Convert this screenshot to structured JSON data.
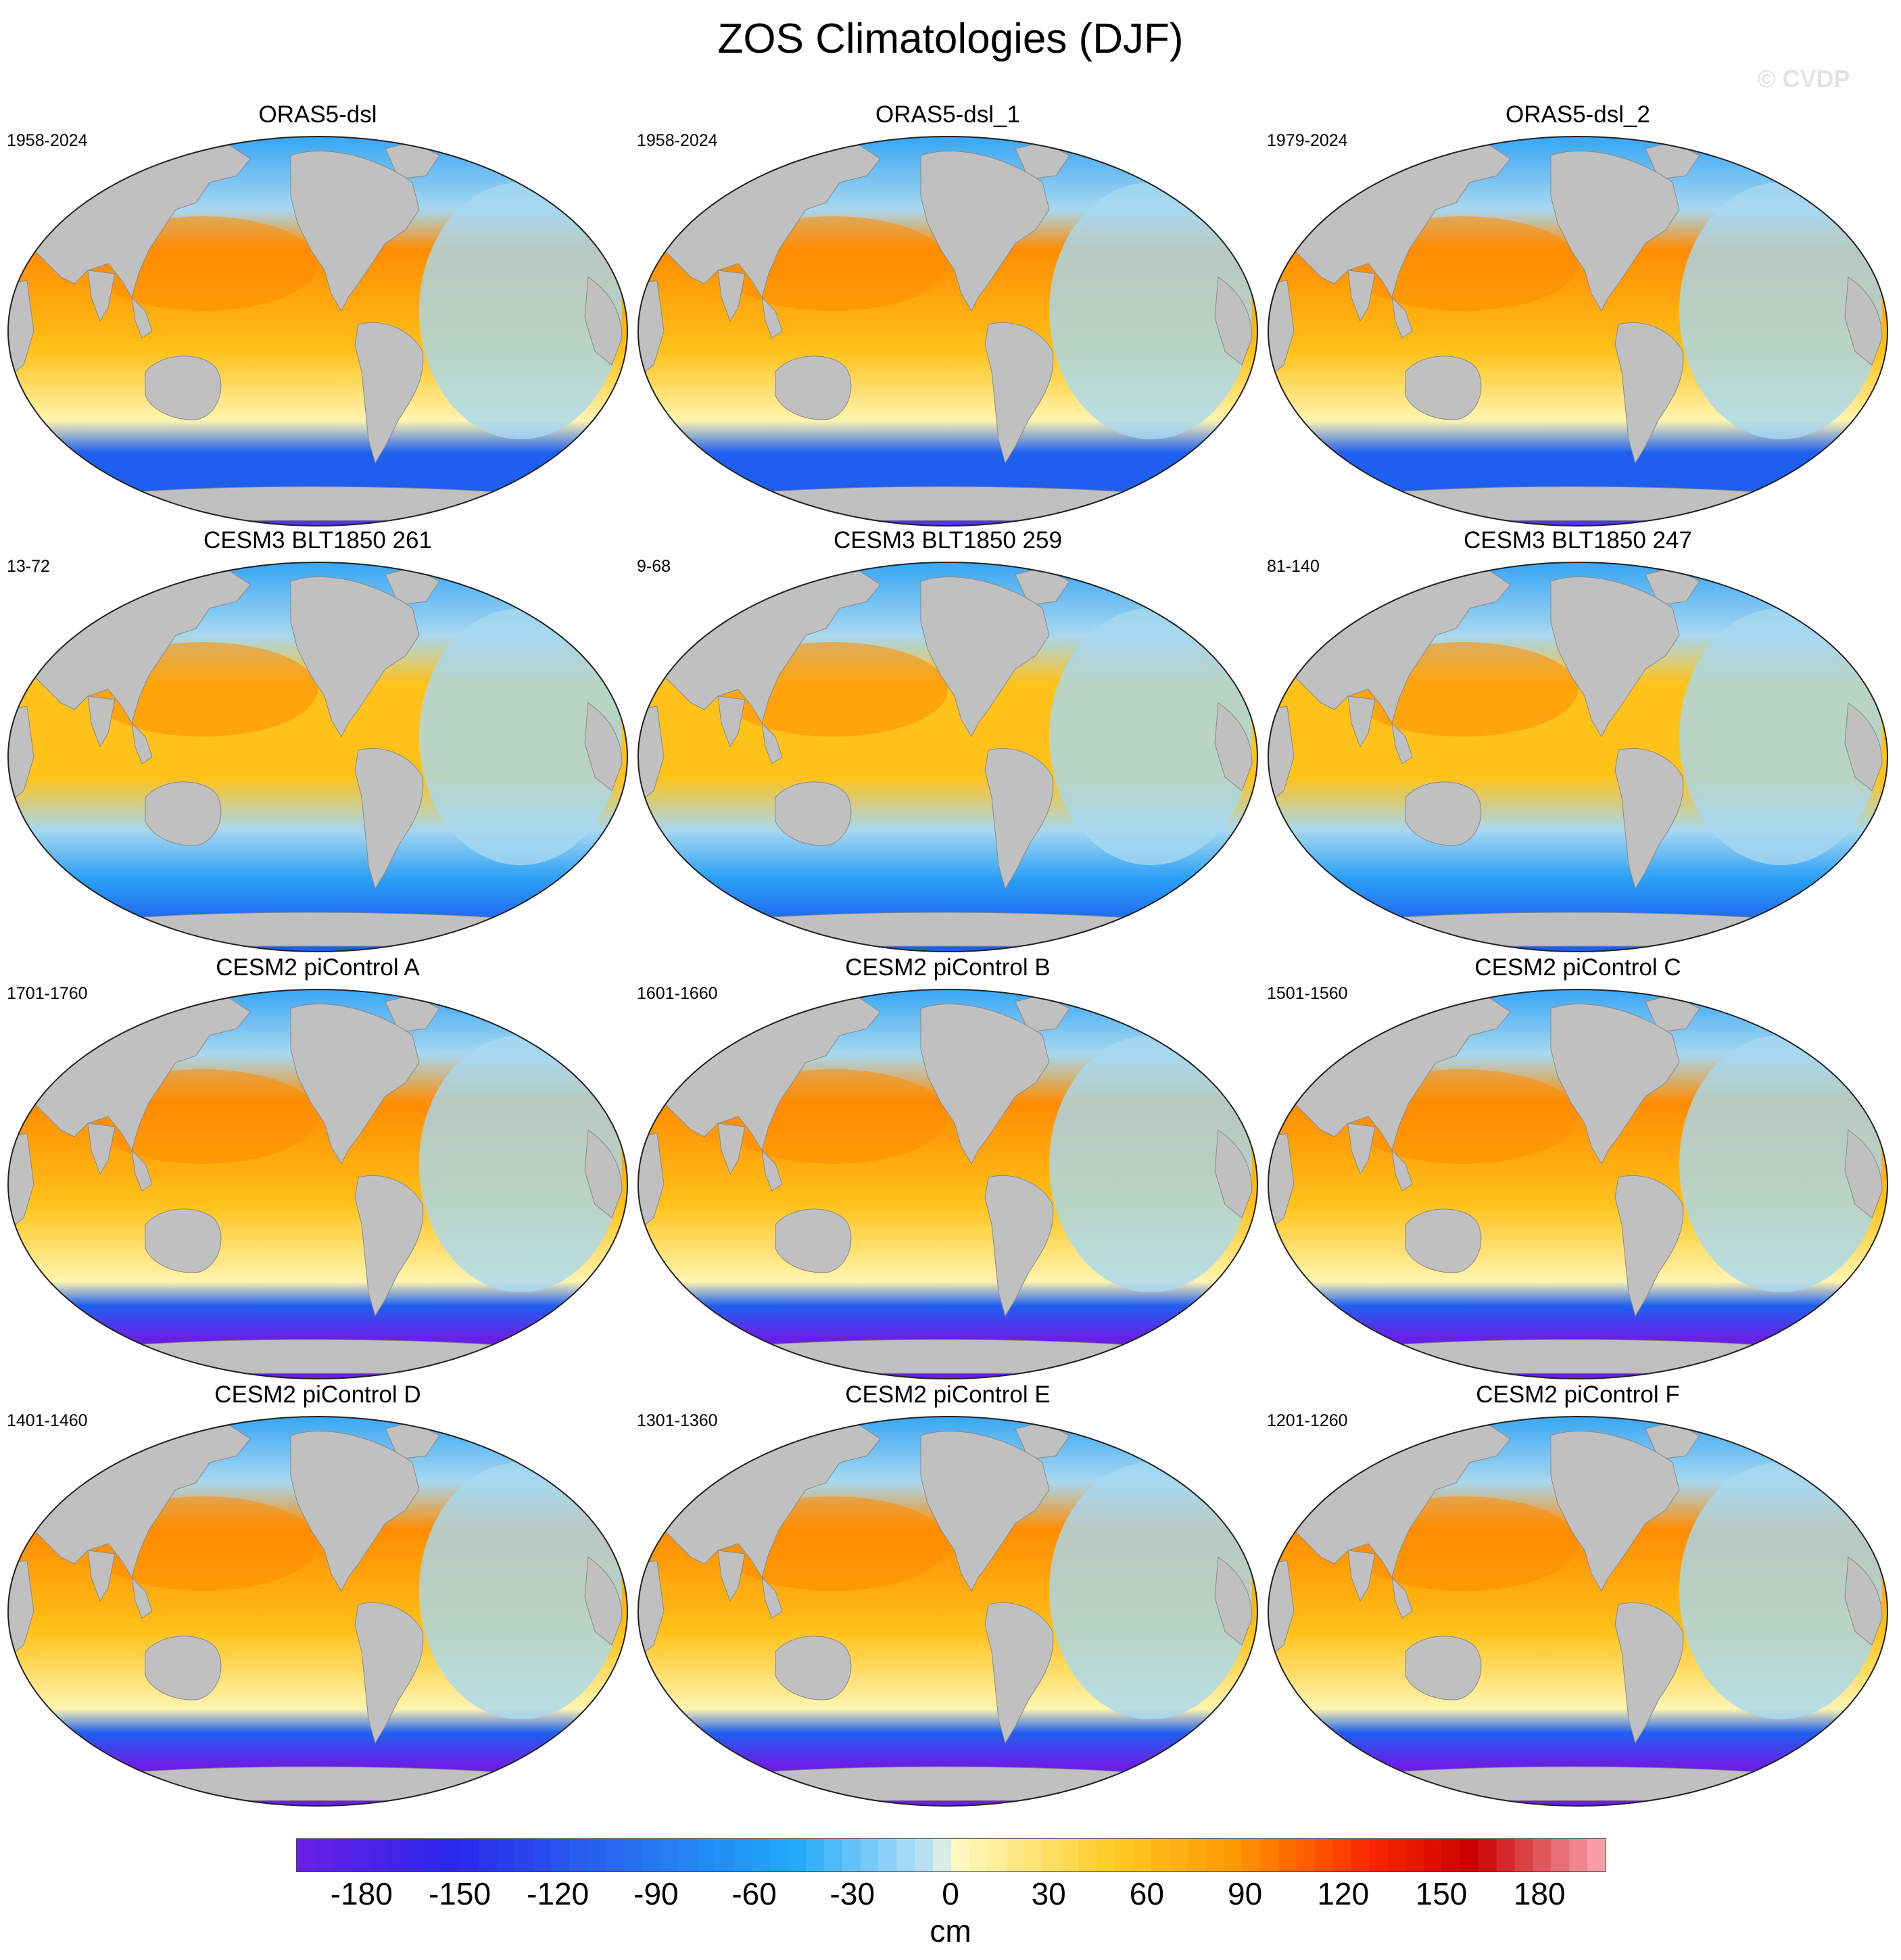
{
  "title": "ZOS Climatologies (DJF)",
  "watermark": "© CVDP",
  "panels": [
    {
      "title": "ORAS5-dsl",
      "period": "1958-2024",
      "variant": "obs"
    },
    {
      "title": "ORAS5-dsl_1",
      "period": "1958-2024",
      "variant": "obs"
    },
    {
      "title": "ORAS5-dsl_2",
      "period": "1979-2024",
      "variant": "obs"
    },
    {
      "title": "CESM3 BLT1850 261",
      "period": "13-72",
      "variant": "cesm3"
    },
    {
      "title": "CESM3 BLT1850 259",
      "period": "9-68",
      "variant": "cesm3"
    },
    {
      "title": "CESM3 BLT1850 247",
      "period": "81-140",
      "variant": "cesm3"
    },
    {
      "title": "CESM2 piControl A",
      "period": "1701-1760",
      "variant": "cesm2"
    },
    {
      "title": "CESM2 piControl B",
      "period": "1601-1660",
      "variant": "cesm2"
    },
    {
      "title": "CESM2 piControl C",
      "period": "1501-1560",
      "variant": "cesm2"
    },
    {
      "title": "CESM2 piControl D",
      "period": "1401-1460",
      "variant": "cesm2"
    },
    {
      "title": "CESM2 piControl E",
      "period": "1301-1360",
      "variant": "cesm2"
    },
    {
      "title": "CESM2 piControl F",
      "period": "1201-1260",
      "variant": "cesm2"
    }
  ],
  "colorbar": {
    "unit": "cm",
    "tick_labels": [
      "-180",
      "-150",
      "-120",
      "-90",
      "-60",
      "-30",
      "0",
      "30",
      "60",
      "90",
      "120",
      "150",
      "180"
    ],
    "range": [
      -200,
      200
    ]
  },
  "colors": {
    "land": "#c0c0c0",
    "deep_negative": "#6a1fe6",
    "negative": "#1f5ff0",
    "mid_negative": "#2aa0f5",
    "light_negative": "#a8d8f0",
    "zero_positive": "#fff5b0",
    "positive": "#ffc21a",
    "strong_positive": "#ff8c00",
    "max_positive": "#f5a0a0"
  }
}
